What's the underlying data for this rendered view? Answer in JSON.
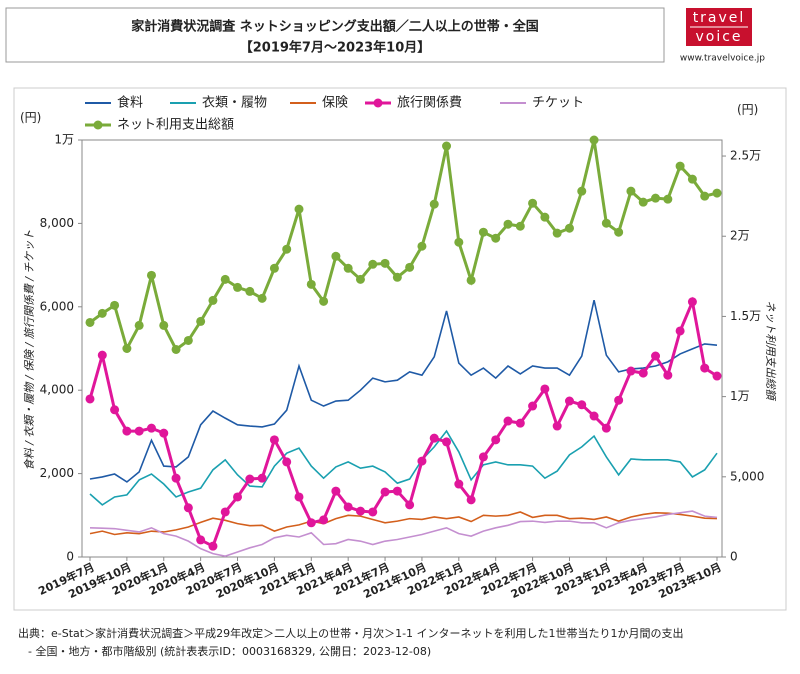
{
  "header": {
    "title": "家計消費状況調査 ネットショッピング支出額／二人以上の世帯・全国",
    "subtitle": "【2019年7月～2023年10月】",
    "logo_top": "travel",
    "logo_bottom": "voice",
    "url": "www.travelvoice.jp"
  },
  "chart_data": {
    "type": "line",
    "ylabel": "食料 / 衣類・履物 / 保険 / 旅行関係費 / チケット",
    "y2label": "ネット利用支出総額",
    "yunit": "(円)",
    "y2unit": "(円)",
    "categories": [
      "2019年7月",
      null,
      null,
      "2019年10月",
      null,
      null,
      "2020年1月",
      null,
      null,
      "2020年4月",
      null,
      null,
      "2020年7月",
      null,
      null,
      "2020年10月",
      null,
      null,
      "2021年1月",
      null,
      null,
      "2021年4月",
      null,
      null,
      "2021年7月",
      null,
      null,
      "2021年10月",
      null,
      null,
      "2022年1月",
      null,
      null,
      "2022年4月",
      null,
      null,
      "2022年7月",
      null,
      null,
      "2022年10月",
      null,
      null,
      "2023年1月",
      null,
      null,
      "2023年4月",
      null,
      null,
      "2023年7月",
      null,
      null,
      "2023年10月"
    ],
    "ylim": [
      0,
      10000
    ],
    "yticks": [
      0,
      {
        "value": 2000,
        "label": "2,000"
      },
      {
        "value": 4000,
        "label": "4,000"
      },
      {
        "value": 6000,
        "label": "6,000"
      },
      {
        "value": 8000,
        "label": "8,000"
      },
      {
        "value": 10000,
        "label": "1万"
      }
    ],
    "y2lim": [
      0,
      26000
    ],
    "y2ticks": [
      0,
      {
        "value": 5000,
        "label": "5,000"
      },
      {
        "value": 10000,
        "label": "1万"
      },
      {
        "value": 15000,
        "label": "1.5万"
      },
      {
        "value": 20000,
        "label": "2万"
      },
      {
        "value": 25000,
        "label": "2.5万"
      }
    ],
    "series": [
      {
        "name": "食料",
        "color": "#1f5aa6",
        "values": [
          1870,
          1920,
          1990,
          1800,
          2040,
          2800,
          2180,
          2160,
          2400,
          3170,
          3500,
          3330,
          3170,
          3140,
          3120,
          3190,
          3520,
          4580,
          3760,
          3620,
          3740,
          3760,
          4000,
          4290,
          4200,
          4240,
          4440,
          4360,
          4800,
          5900,
          4650,
          4360,
          4530,
          4290,
          4580,
          4390,
          4580,
          4530,
          4530,
          4360,
          4820,
          6160,
          4840,
          4440,
          4510,
          4530,
          4580,
          4680,
          4870,
          4990,
          5110,
          5080
        ]
      },
      {
        "name": "衣類・履物",
        "color": "#1aa0b0",
        "values": [
          1510,
          1250,
          1440,
          1490,
          1850,
          1990,
          1750,
          1440,
          1560,
          1650,
          2090,
          2330,
          1970,
          1700,
          1680,
          2180,
          2490,
          2610,
          2180,
          1890,
          2160,
          2280,
          2130,
          2180,
          2040,
          1770,
          1870,
          2330,
          2640,
          3020,
          2520,
          1850,
          2210,
          2280,
          2210,
          2210,
          2180,
          1890,
          2060,
          2450,
          2640,
          2900,
          2400,
          1970,
          2350,
          2330,
          2330,
          2330,
          2280,
          1920,
          2090,
          2490
        ]
      },
      {
        "name": "保険",
        "color": "#d35f1c",
        "values": [
          560,
          620,
          540,
          580,
          560,
          620,
          600,
          650,
          720,
          830,
          930,
          880,
          800,
          750,
          760,
          620,
          720,
          770,
          860,
          800,
          920,
          1000,
          980,
          900,
          820,
          860,
          920,
          900,
          960,
          920,
          960,
          850,
          1000,
          980,
          1000,
          1080,
          950,
          1000,
          1000,
          920,
          930,
          900,
          960,
          860,
          960,
          1020,
          1060,
          1050,
          1020,
          980,
          930,
          920
        ]
      },
      {
        "name": "旅行関係費",
        "color": "#e0169a",
        "marker": true,
        "values": [
          3790,
          4840,
          3530,
          3020,
          3020,
          3090,
          2970,
          1890,
          1180,
          410,
          260,
          1080,
          1440,
          1870,
          1890,
          2810,
          2280,
          1440,
          820,
          890,
          1580,
          1200,
          1100,
          1080,
          1560,
          1580,
          1250,
          2300,
          2850,
          2760,
          1750,
          1370,
          2400,
          2810,
          3260,
          3210,
          3620,
          4030,
          3140,
          3740,
          3650,
          3380,
          3090,
          3760,
          4460,
          4410,
          4820,
          4360,
          5420,
          6120,
          4530,
          4340
        ]
      },
      {
        "name": "チケット",
        "color": "#c48fd0",
        "values": [
          700,
          690,
          680,
          640,
          600,
          700,
          560,
          500,
          380,
          200,
          80,
          20,
          120,
          220,
          300,
          460,
          520,
          480,
          580,
          300,
          320,
          420,
          380,
          300,
          380,
          420,
          480,
          540,
          620,
          700,
          560,
          500,
          620,
          700,
          760,
          850,
          860,
          830,
          860,
          860,
          820,
          820,
          700,
          820,
          880,
          920,
          960,
          1020,
          1060,
          1100,
          980,
          950
        ]
      },
      {
        "name": "ネット利用支出総額",
        "color": "#7aab3a",
        "marker": true,
        "axis": "y2",
        "values": [
          14625,
          15190,
          15690,
          13000,
          14440,
          17560,
          14440,
          12940,
          13500,
          14690,
          16000,
          17310,
          16810,
          16560,
          16125,
          18000,
          19190,
          21690,
          17000,
          15940,
          18750,
          18000,
          17310,
          18250,
          18310,
          17440,
          18060,
          19375,
          22000,
          25625,
          19625,
          17250,
          20250,
          19875,
          20750,
          20625,
          22060,
          21190,
          20190,
          20500,
          22810,
          26000,
          20810,
          20250,
          22810,
          22125,
          22375,
          22310,
          24375,
          23560,
          22500,
          22690
        ]
      }
    ]
  },
  "footer": {
    "line1": "出典：e-Stat＞家計消費状況調査＞平成29年改定＞二人以上の世帯・月次＞1-1 インターネットを利用した1世帯当たり1か月間の支出",
    "line2": "- 全国・地方・都市階級別 (統計表表示ID：0003168329, 公開日：2023-12-08)"
  }
}
